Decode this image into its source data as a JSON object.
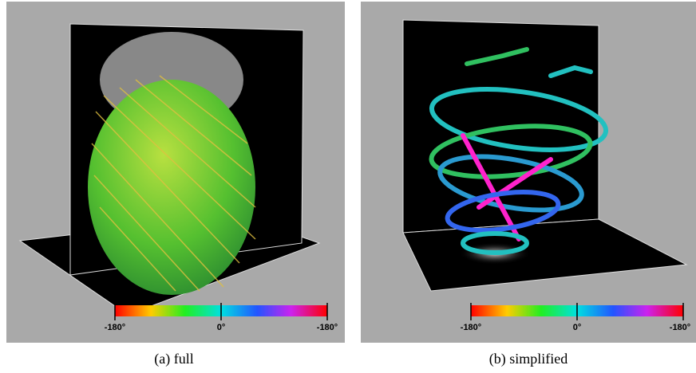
{
  "panels": [
    {
      "caption": "(a) full",
      "colorbar_labels": [
        "-180°",
        "0°",
        "-180°"
      ]
    },
    {
      "caption": "(b) simplified",
      "colorbar_labels": [
        "-180°",
        "0°",
        "-180°"
      ]
    }
  ]
}
